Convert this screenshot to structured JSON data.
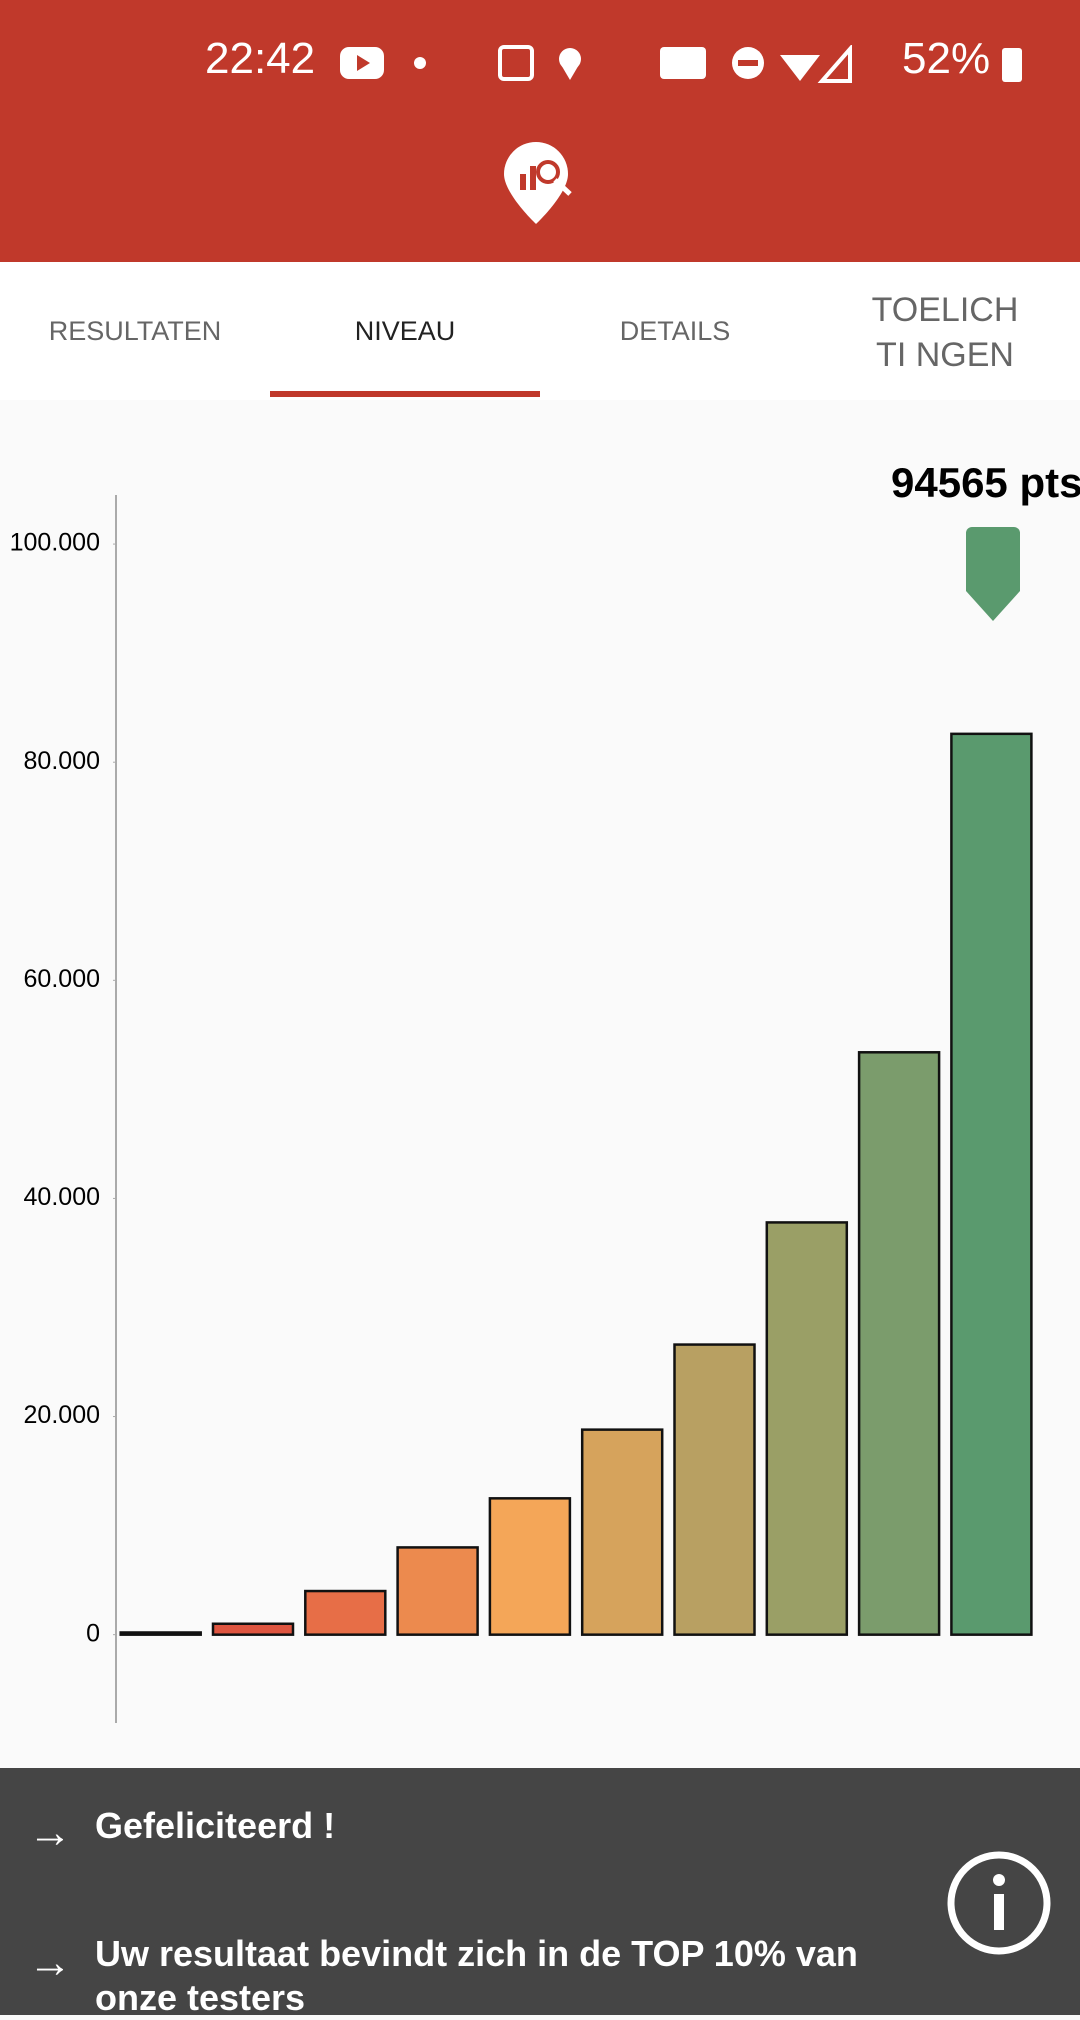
{
  "status_bar": {
    "time": "22:42",
    "battery": "52%"
  },
  "tabs": [
    "RESULTATEN",
    "NIVEAU",
    "DETAILS",
    "TOELICHTI NGEN"
  ],
  "chart_data": {
    "type": "bar",
    "annotation": "94565 pts",
    "values": [
      200,
      1000,
      4000,
      8000,
      12500,
      18800,
      26600,
      37800,
      53400,
      82600
    ],
    "colors": [
      "#d9483b",
      "#de5540",
      "#e76e47",
      "#ec8a4e",
      "#f4a658",
      "#d6a35c",
      "#b8a062",
      "#9a9f66",
      "#7b9c6c",
      "#5a9a6e"
    ],
    "ylim": [
      -8100,
      104500
    ],
    "yticks": [
      0,
      {
        "value": 20000,
        "label": "20.000"
      },
      {
        "value": 40000,
        "label": "40.000"
      },
      {
        "value": 60000,
        "label": "60.000"
      },
      {
        "value": 80000,
        "label": "80.000"
      },
      {
        "value": 100000,
        "label": "100.000"
      }
    ],
    "grid": false
  },
  "messages": [
    "Gefeliciteerd !",
    "Uw resultaat bevindt zich in de TOP 10% van onze testers"
  ]
}
